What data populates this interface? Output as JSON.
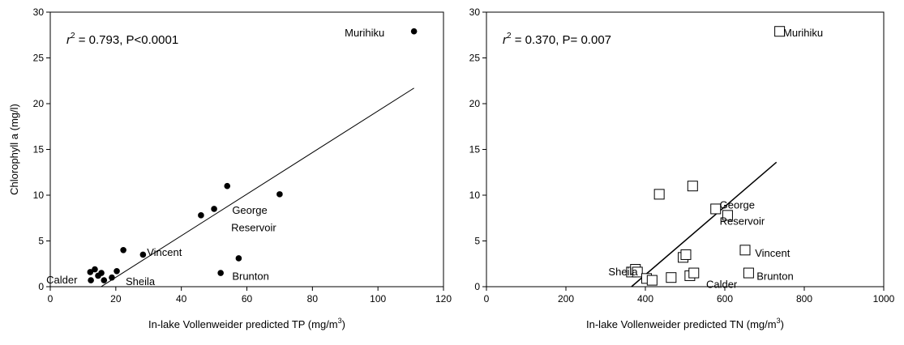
{
  "chart_data": [
    {
      "type": "scatter",
      "marker": "filled-circle",
      "xlabel": "In-lake Vollenweider predicted TP (mg/m",
      "xlabel_sup": "3",
      "xlabel_end": ")",
      "ylabel": "Chlorophyll a (mg/l)",
      "xlim": [
        0,
        120
      ],
      "ylim": [
        0,
        30
      ],
      "x_ticks": [
        "0",
        "20",
        "40",
        "60",
        "80",
        "100",
        "120"
      ],
      "y_ticks": [
        "0",
        "5",
        "10",
        "15",
        "20",
        "25",
        "30"
      ],
      "stat_r": "r",
      "stat_sup": "2",
      "stat_text": " = 0.793,  P<0.0001",
      "points": [
        {
          "x": 111,
          "y": 27.9
        },
        {
          "x": 12.2,
          "y": 1.6
        },
        {
          "x": 12.4,
          "y": 0.7
        },
        {
          "x": 13.6,
          "y": 1.9
        },
        {
          "x": 14.6,
          "y": 1.2
        },
        {
          "x": 15.6,
          "y": 1.5
        },
        {
          "x": 16.4,
          "y": 0.7
        },
        {
          "x": 18.8,
          "y": 1.0
        },
        {
          "x": 20.3,
          "y": 1.7
        },
        {
          "x": 22.3,
          "y": 4.0
        },
        {
          "x": 28.3,
          "y": 3.5
        },
        {
          "x": 46,
          "y": 7.8
        },
        {
          "x": 50,
          "y": 8.5
        },
        {
          "x": 54,
          "y": 11.0
        },
        {
          "x": 70,
          "y": 10.1
        },
        {
          "x": 57.5,
          "y": 3.1
        },
        {
          "x": 52,
          "y": 1.5
        }
      ],
      "fit_line": {
        "x": [
          15.5,
          111
        ],
        "y": [
          0,
          21.7
        ]
      },
      "labels": [
        {
          "text": "Murihiku",
          "x": 102,
          "y": 27.8,
          "anchor": "end"
        },
        {
          "text": "George",
          "x": 55.5,
          "y": 8.4,
          "anchor": "start"
        },
        {
          "text": "Reservoir",
          "x": 55.2,
          "y": 6.5,
          "anchor": "start"
        },
        {
          "text": "Vincent",
          "x": 29.5,
          "y": 3.8,
          "anchor": "start"
        },
        {
          "text": "Brunton",
          "x": 55.5,
          "y": 1.2,
          "anchor": "start"
        },
        {
          "text": "Calder",
          "x": -1.2,
          "y": 0.8,
          "anchor": "start"
        },
        {
          "text": "Sheila",
          "x": 23,
          "y": 0.6,
          "anchor": "start"
        }
      ]
    },
    {
      "type": "scatter",
      "marker": "open-square",
      "xlabel": "In-lake Vollenweider predicted TN (mg/m",
      "xlabel_sup": "3",
      "xlabel_end": ")",
      "ylabel": "",
      "xlim": [
        0,
        1000
      ],
      "ylim": [
        0,
        30
      ],
      "x_ticks": [
        "0",
        "200",
        "400",
        "600",
        "800",
        "1000"
      ],
      "y_ticks": [
        "0",
        "5",
        "10",
        "15",
        "20",
        "25",
        "30"
      ],
      "stat_r": "r",
      "stat_sup": "2",
      "stat_text": " = 0.370,  P= 0.007",
      "points": [
        {
          "x": 738,
          "y": 27.9
        },
        {
          "x": 365,
          "y": 1.6
        },
        {
          "x": 375,
          "y": 1.9
        },
        {
          "x": 380,
          "y": 1.6
        },
        {
          "x": 403,
          "y": 0.9
        },
        {
          "x": 417,
          "y": 0.7
        },
        {
          "x": 465,
          "y": 1.0
        },
        {
          "x": 495,
          "y": 3.2
        },
        {
          "x": 502,
          "y": 3.5
        },
        {
          "x": 512,
          "y": 1.2
        },
        {
          "x": 522,
          "y": 1.5
        },
        {
          "x": 435,
          "y": 10.1
        },
        {
          "x": 519,
          "y": 11.0
        },
        {
          "x": 577,
          "y": 8.5
        },
        {
          "x": 607,
          "y": 7.8
        },
        {
          "x": 651,
          "y": 4.0
        },
        {
          "x": 660,
          "y": 1.5
        }
      ],
      "fit_line": {
        "x": [
          365,
          730
        ],
        "y": [
          0,
          13.6
        ]
      },
      "labels": [
        {
          "text": "Murihiku",
          "x": 747,
          "y": 27.8,
          "anchor": "start"
        },
        {
          "text": "George",
          "x": 587,
          "y": 9.0,
          "anchor": "start"
        },
        {
          "text": "Reservoir",
          "x": 587,
          "y": 7.2,
          "anchor": "start"
        },
        {
          "text": "Vincent",
          "x": 676,
          "y": 3.7,
          "anchor": "start"
        },
        {
          "text": "Brunton",
          "x": 680,
          "y": 1.2,
          "anchor": "start"
        },
        {
          "text": "Sheila",
          "x": 307,
          "y": 1.7,
          "anchor": "start"
        },
        {
          "text": "Calder",
          "x": 553,
          "y": 0.3,
          "anchor": "start"
        }
      ]
    }
  ]
}
